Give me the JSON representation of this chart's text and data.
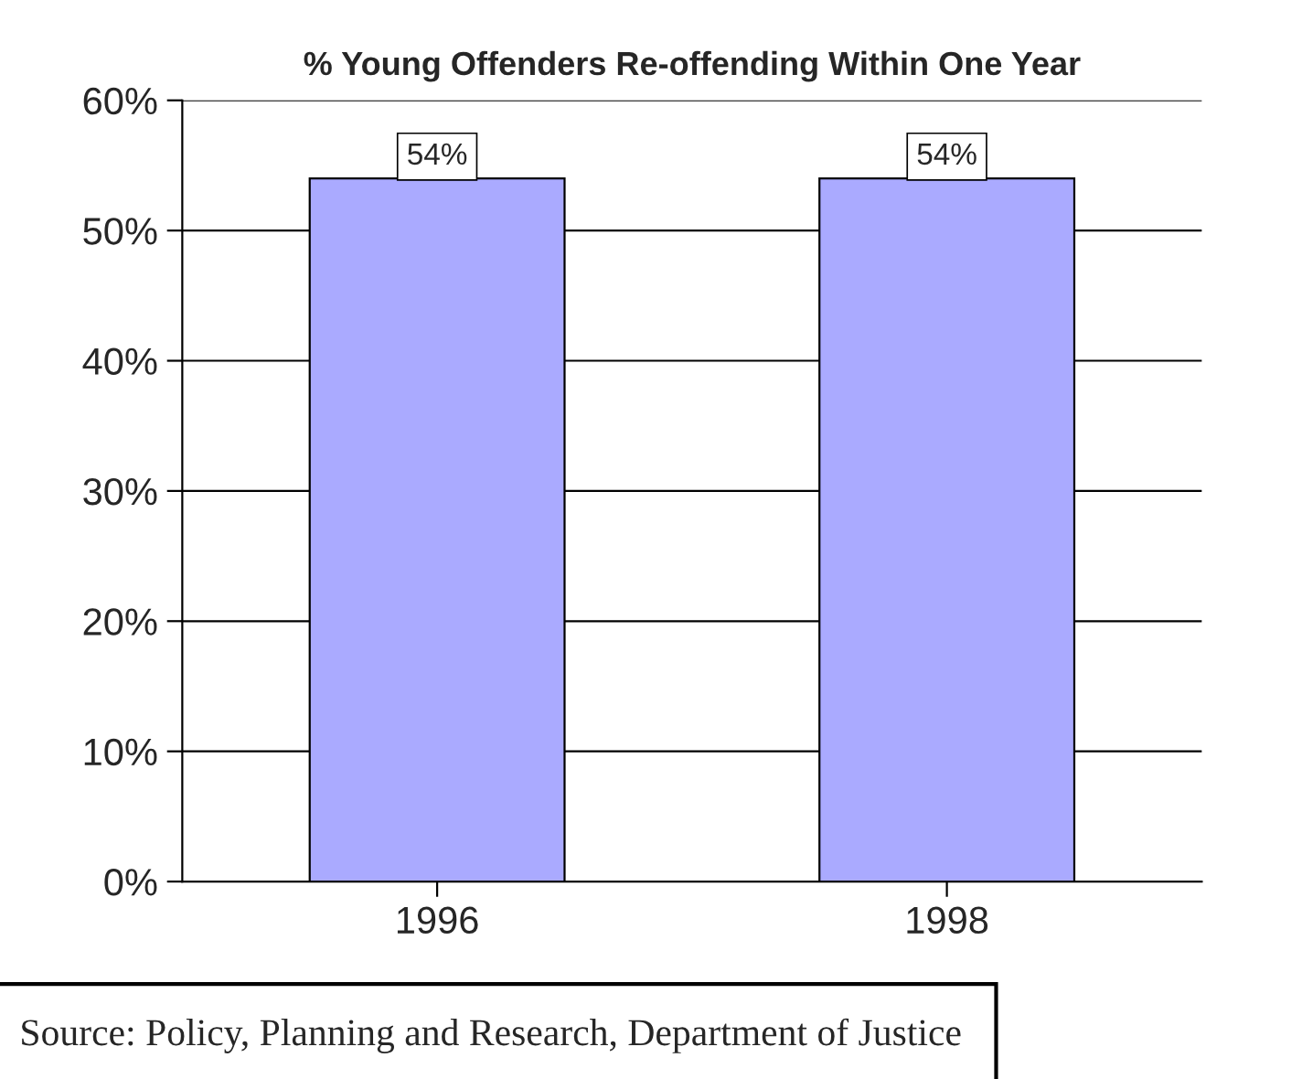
{
  "chart_data": {
    "type": "bar",
    "title": "% Young Offenders Re-offending Within One Year",
    "categories": [
      "1996",
      "1998"
    ],
    "values": [
      54,
      54
    ],
    "color": "#aaaaff",
    "value_labels": [
      "54%",
      "54%"
    ],
    "ylim": [
      0,
      60
    ],
    "yticks": [
      {
        "value": 0,
        "label": "0%"
      },
      {
        "value": 10,
        "label": "10%"
      },
      {
        "value": 20,
        "label": "20%"
      },
      {
        "value": 30,
        "label": "30%"
      },
      {
        "value": 40,
        "label": "40%"
      },
      {
        "value": 50,
        "label": "50%"
      },
      {
        "value": 60,
        "label": "60%"
      }
    ],
    "grid": "y",
    "legend": false,
    "annotations": [
      "Source: Policy, Planning and Research, Department of Justice"
    ]
  }
}
